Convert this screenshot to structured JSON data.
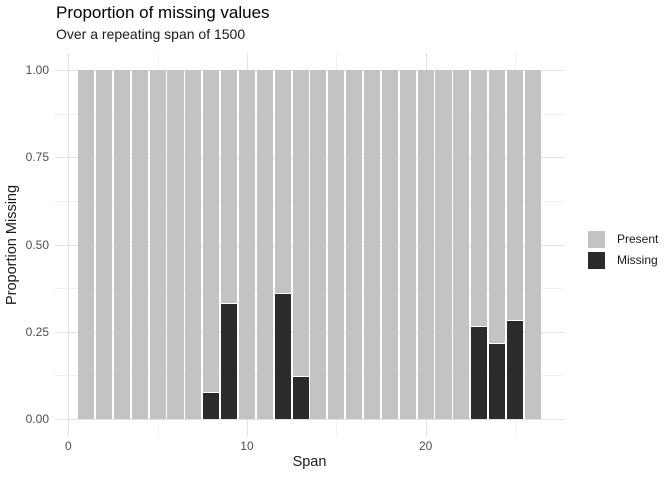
{
  "chart_data": {
    "type": "bar",
    "stacked": true,
    "title": "Proportion of missing values",
    "subtitle": "Over a repeating span of 1500",
    "xlabel": "Span",
    "ylabel": "Proportion Missing",
    "x": [
      1,
      2,
      3,
      4,
      5,
      6,
      7,
      8,
      9,
      10,
      11,
      12,
      13,
      14,
      15,
      16,
      17,
      18,
      19,
      20,
      21,
      22,
      23,
      24,
      25,
      26
    ],
    "series": [
      {
        "name": "Present",
        "color": "#c3c3c3",
        "values": [
          1,
          1,
          1,
          1,
          1,
          1,
          1,
          0.923,
          0.668,
          1,
          1,
          0.638,
          0.879,
          1,
          1,
          1,
          1,
          1,
          1,
          1,
          1,
          1,
          0.734,
          0.784,
          0.717,
          1
        ]
      },
      {
        "name": "Missing",
        "color": "#2b2b2b",
        "values": [
          0,
          0,
          0,
          0,
          0,
          0,
          0,
          0.077,
          0.332,
          0,
          0,
          0.362,
          0.121,
          0,
          0,
          0,
          0,
          0,
          0,
          0,
          0,
          0,
          0.266,
          0.216,
          0.283,
          0
        ]
      }
    ],
    "bar_width": 0.9,
    "x_ticks": [
      0,
      10,
      20
    ],
    "x_tick_labels": [
      "0",
      "10",
      "20"
    ],
    "x_minor_ticks": [
      5,
      15,
      25
    ],
    "y_ticks": [
      0,
      0.25,
      0.5,
      0.75,
      1
    ],
    "y_tick_labels": [
      "0.00",
      "0.25",
      "0.50",
      "0.75",
      "1.00"
    ],
    "y_minor_ticks": [
      0.125,
      0.375,
      0.625,
      0.875
    ],
    "xlim": [
      -0.745,
      27.745
    ],
    "ylim": [
      -0.05,
      1.05
    ],
    "grid": "major-and-minor",
    "legend_position": "right",
    "colors": {
      "background": "#ffffff",
      "grid_major": "#e2e2e2",
      "grid_minor": "#f0f0f0",
      "axis_text": "#4d4d4d",
      "segment_separator": "#ffffff"
    }
  },
  "legend": {
    "items": [
      {
        "label": "Present",
        "color": "#c3c3c3"
      },
      {
        "label": "Missing",
        "color": "#2b2b2b"
      }
    ]
  }
}
